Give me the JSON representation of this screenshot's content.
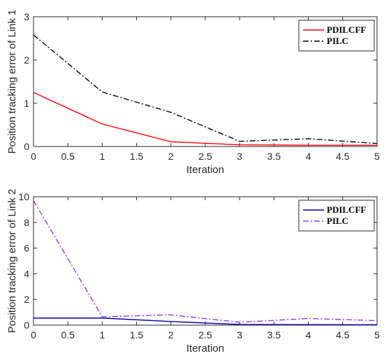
{
  "chart_data": [
    {
      "type": "line",
      "xlabel": "Iteration",
      "ylabel": "Position tracking error of Link 1",
      "xlim": [
        0,
        5
      ],
      "ylim": [
        0,
        3
      ],
      "xticks": [
        "0",
        "0.5",
        "1",
        "1.5",
        "2",
        "2.5",
        "3",
        "3.5",
        "4",
        "4.5",
        "5"
      ],
      "yticks": [
        "0",
        "1",
        "2",
        "3"
      ],
      "x": [
        0,
        1,
        2,
        3,
        4,
        5
      ],
      "grid": false,
      "legend_position": "top-right",
      "series": [
        {
          "name": "PDILCFF",
          "color": "#ff0000",
          "dash": "solid",
          "values": [
            1.25,
            0.52,
            0.11,
            0.04,
            0.03,
            0.03
          ]
        },
        {
          "name": "PILC",
          "color": "#000000",
          "dash": "dashdot",
          "values": [
            2.58,
            1.26,
            0.79,
            0.12,
            0.18,
            0.07
          ]
        }
      ]
    },
    {
      "type": "line",
      "xlabel": "Iteration",
      "ylabel": "Position tracking error of Link 2",
      "xlim": [
        0,
        5
      ],
      "ylim": [
        0,
        10
      ],
      "xticks": [
        "0",
        "0.5",
        "1",
        "1.5",
        "2",
        "2.5",
        "3",
        "3.5",
        "4",
        "4.5",
        "5"
      ],
      "yticks": [
        "0",
        "2",
        "4",
        "6",
        "8",
        "10"
      ],
      "x": [
        0,
        1,
        2,
        3,
        4,
        5
      ],
      "grid": false,
      "legend_position": "top-right",
      "series": [
        {
          "name": "PDILCFF",
          "color": "#0000aa",
          "dash": "solid",
          "values": [
            0.55,
            0.55,
            0.28,
            0.05,
            0.04,
            0.03
          ]
        },
        {
          "name": "PILC",
          "color": "#9933ee",
          "dash": "dashdot",
          "values": [
            9.7,
            0.65,
            0.8,
            0.22,
            0.52,
            0.35
          ]
        }
      ]
    }
  ]
}
